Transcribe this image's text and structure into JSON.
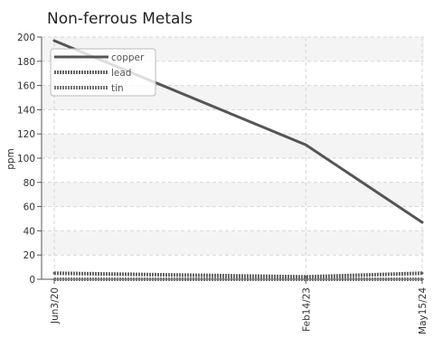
{
  "chart_data": {
    "type": "line",
    "title": "Non-ferrous Metals",
    "xlabel": "",
    "ylabel": "ppm",
    "x": [
      "Jun3/20",
      "Feb14/23",
      "May15/24"
    ],
    "x_days": [
      0,
      986,
      1442
    ],
    "ylim": [
      0,
      200
    ],
    "yticks": [
      0,
      20,
      40,
      60,
      80,
      100,
      120,
      140,
      160,
      180,
      200
    ],
    "grid": true,
    "legend_position": "top-left",
    "series": [
      {
        "name": "copper",
        "values": [
          197,
          111,
          47
        ],
        "color": "#555555",
        "style": "solid"
      },
      {
        "name": "lead",
        "values": [
          5,
          2,
          5
        ],
        "color": "#666666",
        "style": "dotted"
      },
      {
        "name": "tin",
        "values": [
          0,
          0,
          0
        ],
        "color": "#777777",
        "style": "dotted"
      }
    ]
  }
}
